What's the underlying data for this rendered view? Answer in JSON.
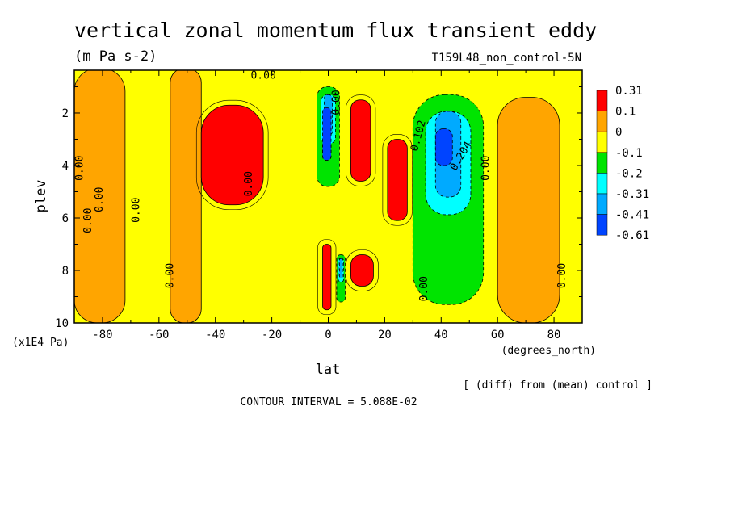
{
  "chart_data": {
    "type": "heatmap",
    "title": "vertical zonal momentum flux transient eddy",
    "units": "(m Pa s-2)",
    "dataset": "T159L48_non_control-5N",
    "xlabel": "lat",
    "x_units": "(degrees_north)",
    "ylabel": "plev",
    "y_units": "(x1E4 Pa)",
    "xlim": [
      -90,
      90
    ],
    "ylim": [
      10,
      0.3
    ],
    "x_ticks": [
      -80,
      -60,
      -40,
      -20,
      0,
      20,
      40,
      60,
      80
    ],
    "y_ticks": [
      2,
      4,
      6,
      8,
      10
    ],
    "diff_note": "[ (diff) from (mean) control ]",
    "contour_interval": "CONTOUR INTERVAL = 5.088E-02",
    "legend": {
      "position": "right",
      "levels": [
        "0.31",
        "0.1",
        "0",
        "-0.1",
        "-0.2",
        "-0.31",
        "-0.41",
        "-0.61"
      ],
      "colors": [
        "#ff0000",
        "#ffa500",
        "#ffff00",
        "#00e400",
        "#00ffff",
        "#00aaff",
        "#0044ff"
      ]
    },
    "contour_labels": [
      {
        "text": "0.00",
        "lat": -23,
        "plev": 0.7,
        "rotate": 0
      },
      {
        "text": "0.00",
        "lat": -87,
        "plev": 4.1,
        "rotate": -90
      },
      {
        "text": "0.00",
        "lat": -80,
        "plev": 5.3,
        "rotate": -90
      },
      {
        "text": "0.00",
        "lat": -84,
        "plev": 6.1,
        "rotate": -90
      },
      {
        "text": "0.00",
        "lat": -67,
        "plev": 5.7,
        "rotate": -90
      },
      {
        "text": "0.00",
        "lat": -55,
        "plev": 8.2,
        "rotate": -90
      },
      {
        "text": "0.00",
        "lat": -27,
        "plev": 4.7,
        "rotate": -90
      },
      {
        "text": "0.00",
        "lat": 4,
        "plev": 1.6,
        "rotate": -90
      },
      {
        "text": "0.102",
        "lat": 33,
        "plev": 2.9,
        "rotate": -75
      },
      {
        "text": "0.00",
        "lat": 35,
        "plev": 8.7,
        "rotate": -90
      },
      {
        "text": "0.204",
        "lat": 48,
        "plev": 3.7,
        "rotate": -60
      },
      {
        "text": "0.00",
        "lat": 57,
        "plev": 4.1,
        "rotate": -90
      },
      {
        "text": "0.00",
        "lat": 84,
        "plev": 8.2,
        "rotate": -90
      }
    ],
    "fields": [
      {
        "level": "positive_0_0.1",
        "color": "#ffa500",
        "regions": [
          {
            "lat": [
              -90,
              -72
            ],
            "plev": [
              0.3,
              10
            ],
            "note": "west belt"
          },
          {
            "lat": [
              -56,
              -45
            ],
            "plev": [
              0.3,
              10
            ],
            "note": "large 0-0.1 region"
          },
          {
            "lat": [
              60,
              82
            ],
            "plev": [
              1.4,
              10
            ],
            "note": "east belt"
          }
        ]
      },
      {
        "level": "0.1_to_0.31",
        "color": "#ff0000",
        "regions": [
          {
            "lat": [
              -45,
              -23
            ],
            "plev": [
              1.7,
              5.5
            ],
            "note": "southern red jet"
          },
          {
            "lat": [
              8,
              15
            ],
            "plev": [
              1.5,
              4.6
            ],
            "note": "equatorial red"
          },
          {
            "lat": [
              21,
              28
            ],
            "plev": [
              3.0,
              6.1
            ],
            "note": "red lobe"
          },
          {
            "lat": [
              8,
              16
            ],
            "plev": [
              7.4,
              8.6
            ],
            "note": "lower red"
          },
          {
            "lat": [
              -2,
              1
            ],
            "plev": [
              7.0,
              9.5
            ],
            "note": "thin lower red"
          }
        ]
      },
      {
        "level": "negative",
        "color": "#00e400",
        "regions": [
          {
            "lat": [
              30,
              55
            ],
            "plev": [
              1.3,
              9.3
            ],
            "note": "northern negative column"
          },
          {
            "lat": [
              -4,
              4
            ],
            "plev": [
              1.0,
              4.8
            ],
            "note": "equatorial negative"
          },
          {
            "lat": [
              3,
              6
            ],
            "plev": [
              7.4,
              9.2
            ],
            "note": "lower equatorial green"
          }
        ]
      },
      {
        "level": "min",
        "color": "#0044ff",
        "regions": [
          {
            "lat": [
              -2,
              1
            ],
            "plev": [
              1.8,
              3.8
            ],
            "note": "equatorial minimum"
          },
          {
            "lat": [
              38,
              44
            ],
            "plev": [
              2.6,
              4.0
            ],
            "note": "northern minimum"
          }
        ]
      }
    ]
  }
}
